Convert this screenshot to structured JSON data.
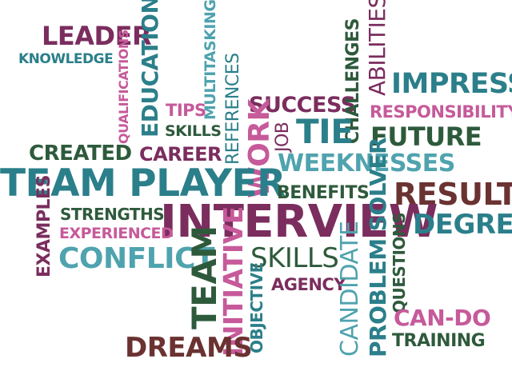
{
  "colors": {
    "plum": "#7b2d5e",
    "teal": "#2b7f8a",
    "light_teal": "#4fa3ae",
    "pink": "#c65a9a",
    "dark_green": "#2e5a3c",
    "maroon": "#6b3232",
    "background": "#ffffff"
  },
  "words": [
    {
      "text": "LEADER",
      "color": "plum"
    },
    {
      "text": "KNOWLEDGE",
      "color": "teal"
    },
    {
      "text": "EDUCATION",
      "color": "teal"
    },
    {
      "text": "QUALIFICATIONS",
      "color": "pink"
    },
    {
      "text": "MULTITASKING",
      "color": "light_teal"
    },
    {
      "text": "TIPS",
      "color": "pink"
    },
    {
      "text": "SKILLS",
      "color": "dark_green"
    },
    {
      "text": "REFERENCES",
      "color": "teal"
    },
    {
      "text": "SUCCESS",
      "color": "plum"
    },
    {
      "text": "CHALLENGES",
      "color": "dark_green"
    },
    {
      "text": "ABILITIES",
      "color": "plum"
    },
    {
      "text": "IMPRESS",
      "color": "teal"
    },
    {
      "text": "RESPONSIBILITY",
      "color": "pink"
    },
    {
      "text": "CREATED",
      "color": "dark_green"
    },
    {
      "text": "CAREER",
      "color": "plum"
    },
    {
      "text": "JOB",
      "color": "plum"
    },
    {
      "text": "TIE",
      "color": "teal"
    },
    {
      "text": "FUTURE",
      "color": "dark_green"
    },
    {
      "text": "WORK",
      "color": "pink"
    },
    {
      "text": "WEEKNESSES",
      "color": "light_teal"
    },
    {
      "text": "TEAM PLAYER",
      "color": "teal"
    },
    {
      "text": "BENEFITS",
      "color": "dark_green"
    },
    {
      "text": "RESULTS",
      "color": "maroon"
    },
    {
      "text": "STRENGTHS",
      "color": "dark_green"
    },
    {
      "text": "INTERVIEW",
      "color": "plum"
    },
    {
      "text": "DEGREE",
      "color": "teal"
    },
    {
      "text": "EXAMPLES",
      "color": "plum"
    },
    {
      "text": "EXPERIENCED",
      "color": "pink"
    },
    {
      "text": "PROBLEM SOLVER",
      "color": "teal"
    },
    {
      "text": "QUESTIONS",
      "color": "dark_green"
    },
    {
      "text": "CONFLICT",
      "color": "light_teal"
    },
    {
      "text": "SKILLS",
      "color": "dark_green"
    },
    {
      "text": "TEAM",
      "color": "dark_green"
    },
    {
      "text": "INITIATIVE",
      "color": "pink"
    },
    {
      "text": "OBJECTIVE",
      "color": "teal"
    },
    {
      "text": "AGENCY",
      "color": "plum"
    },
    {
      "text": "CANDIDATE",
      "color": "light_teal"
    },
    {
      "text": "CAN-DO",
      "color": "pink"
    },
    {
      "text": "TRAINING",
      "color": "dark_green"
    },
    {
      "text": "DREAMS",
      "color": "maroon"
    }
  ]
}
